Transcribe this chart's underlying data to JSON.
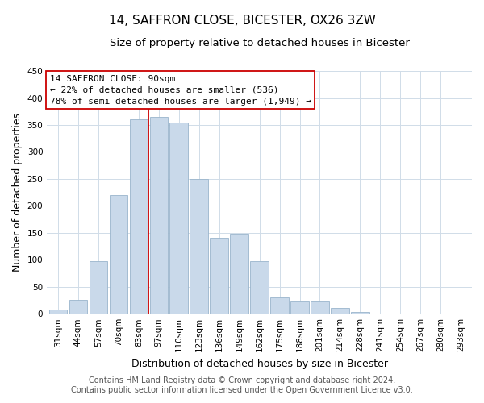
{
  "title": "14, SAFFRON CLOSE, BICESTER, OX26 3ZW",
  "subtitle": "Size of property relative to detached houses in Bicester",
  "xlabel": "Distribution of detached houses by size in Bicester",
  "ylabel": "Number of detached properties",
  "bar_labels": [
    "31sqm",
    "44sqm",
    "57sqm",
    "70sqm",
    "83sqm",
    "97sqm",
    "110sqm",
    "123sqm",
    "136sqm",
    "149sqm",
    "162sqm",
    "175sqm",
    "188sqm",
    "201sqm",
    "214sqm",
    "228sqm",
    "241sqm",
    "254sqm",
    "267sqm",
    "280sqm",
    "293sqm"
  ],
  "bar_values": [
    8,
    25,
    98,
    220,
    360,
    365,
    355,
    250,
    140,
    148,
    97,
    30,
    22,
    22,
    10,
    3,
    0,
    0,
    0,
    0,
    0
  ],
  "bar_color": "#c9d9ea",
  "bar_edge_color": "#9ab5cc",
  "vline_x_idx": 4.5,
  "vline_color": "#cc0000",
  "annotation_line1": "14 SAFFRON CLOSE: 90sqm",
  "annotation_line2": "← 22% of detached houses are smaller (536)",
  "annotation_line3": "78% of semi-detached houses are larger (1,949) →",
  "annotation_box_color": "#ffffff",
  "annotation_box_edge": "#cc0000",
  "ylim": [
    0,
    450
  ],
  "yticks": [
    0,
    50,
    100,
    150,
    200,
    250,
    300,
    350,
    400,
    450
  ],
  "footer_line1": "Contains HM Land Registry data © Crown copyright and database right 2024.",
  "footer_line2": "Contains public sector information licensed under the Open Government Licence v3.0.",
  "background_color": "#ffffff",
  "grid_color": "#d0dce8",
  "title_fontsize": 11,
  "subtitle_fontsize": 9.5,
  "axis_label_fontsize": 9,
  "tick_fontsize": 7.5,
  "footer_fontsize": 7
}
